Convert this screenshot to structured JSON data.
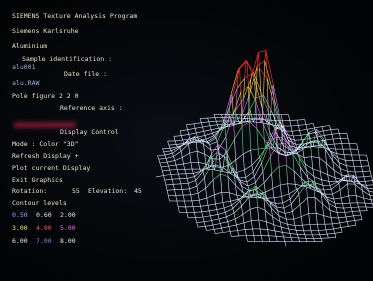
{
  "header": {
    "title": "SIEMENS Texture Analysis Program",
    "company": "Siemens Karlsruhe",
    "material": "Aluminium"
  },
  "info": {
    "sample_label": "Sample identification :",
    "sample_value": "alu001",
    "data_label": "Date file :",
    "data_value": "alu.RAW",
    "pole_figure": "Pole figure  2 2 0",
    "reference_label": "Reference axis :"
  },
  "controls": {
    "title": "Display Control",
    "mode": "Mode : Color \"3D\"",
    "items": [
      "Refresh Display +",
      "Plot current Display",
      "Exit Graphics"
    ],
    "rotation_label": "Rotation:",
    "rotation_value": "55",
    "elevation_label": "Elevation:",
    "elevation_value": "45"
  },
  "contour": {
    "title": "Contour levels",
    "rows": [
      [
        "0.50",
        "0.60",
        "2.00"
      ],
      [
        "3.00",
        "4.00",
        "5.00"
      ],
      [
        "6.00",
        "7.00",
        "8.00"
      ]
    ]
  }
}
